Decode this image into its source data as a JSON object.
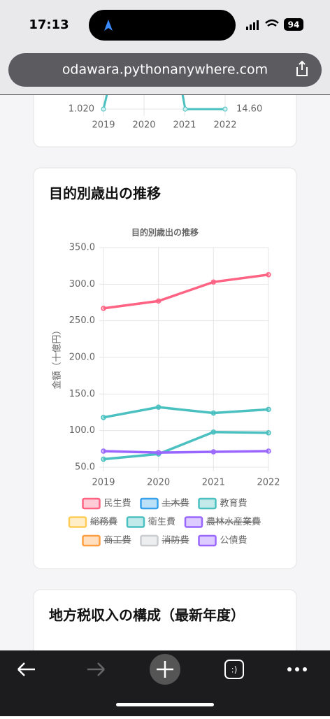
{
  "status_bar": {
    "time": "17:13",
    "battery": "94"
  },
  "browser": {
    "url": "odawara.pythonanywhere.com",
    "tabs_label": ":)"
  },
  "prev_chart": {
    "x_labels": [
      "2019",
      "2020",
      "2021",
      "2022"
    ],
    "left_tick": "1.020",
    "right_tick": "14.60"
  },
  "card_title": "目的別歳出の推移",
  "chart_data": {
    "type": "line",
    "title": "目的別歳出の推移",
    "y_label": "金額（十億円）",
    "categories": [
      "2019",
      "2020",
      "2021",
      "2022"
    ],
    "ylim": [
      50,
      350
    ],
    "yticks": [
      {
        "value": 50,
        "label": "50.0"
      },
      {
        "value": 100,
        "label": "100.0"
      },
      {
        "value": 150,
        "label": "150.0"
      },
      {
        "value": 200,
        "label": "200.0"
      },
      {
        "value": 250,
        "label": "250.0"
      },
      {
        "value": 300,
        "label": "300.0"
      },
      {
        "value": 350,
        "label": "350.0"
      }
    ],
    "grid": true,
    "series": [
      {
        "name": "民生費",
        "color": "#ff6384",
        "values": [
          267,
          277,
          303,
          313
        ]
      },
      {
        "name": "土木費",
        "color": "#36a2eb",
        "hidden": true
      },
      {
        "name": "教育費",
        "color": "#4bc0c0",
        "values": [
          118,
          132,
          124,
          129
        ]
      },
      {
        "name": "総務費",
        "color": "#ffcd56",
        "hidden": true
      },
      {
        "name": "衛生費",
        "color": "#4bc0c0",
        "values": [
          61,
          68,
          98,
          97
        ]
      },
      {
        "name": "農林水産業費",
        "color": "#9966ff",
        "hidden": true
      },
      {
        "name": "商工費",
        "color": "#ff9f40",
        "hidden": true
      },
      {
        "name": "消防費",
        "color": "#c9cbcf",
        "hidden": true
      },
      {
        "name": "公債費",
        "color": "#9966ff",
        "values": [
          72,
          70,
          71,
          72
        ]
      }
    ]
  },
  "next_card_title": "地方税収入の構成（最新年度）"
}
